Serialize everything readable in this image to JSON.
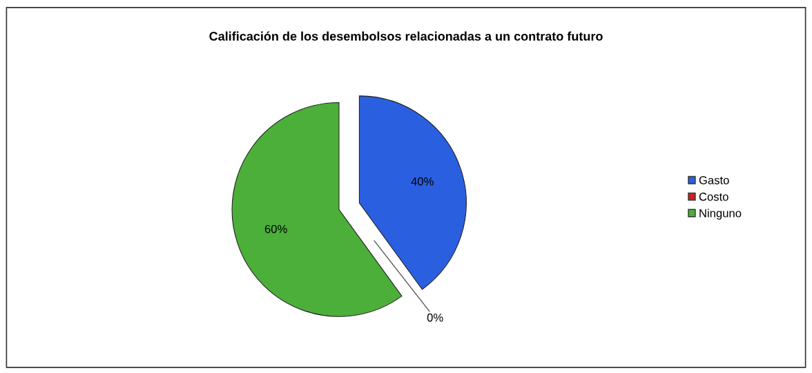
{
  "chart_data": {
    "type": "pie",
    "title": "Calificación de los desembolsos relacionadas a un contrato futuro",
    "categories": [
      "Gasto",
      "Costo",
      "Ninguno"
    ],
    "values": [
      40,
      0,
      60
    ],
    "colors": [
      "#2a5fe0",
      "#cc2020",
      "#4caf3a"
    ],
    "value_labels": [
      "40%",
      "0%",
      "60%"
    ],
    "legend": "right"
  }
}
